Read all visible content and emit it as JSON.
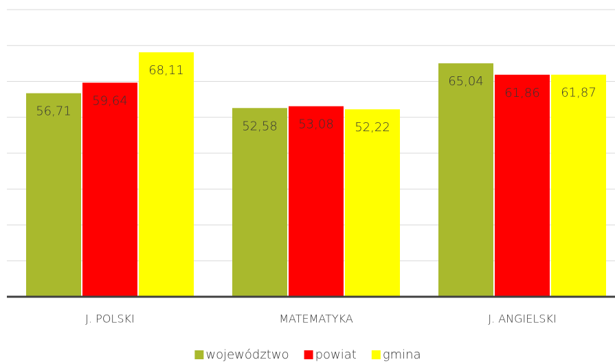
{
  "chart_data": {
    "type": "bar",
    "categories": [
      "J. POLSKI",
      "MATEMATYKA",
      "J. ANGIELSKI"
    ],
    "series": [
      {
        "name": "województwo",
        "color": "#a9b92d",
        "values": [
          56.71,
          52.58,
          65.04
        ],
        "value_labels": [
          "56,71",
          "52,58",
          "65,04"
        ]
      },
      {
        "name": "powiat",
        "color": "#ff0000",
        "values": [
          59.64,
          53.08,
          61.86
        ],
        "value_labels": [
          "59,64",
          "53,08",
          "61,86"
        ]
      },
      {
        "name": "gmina",
        "color": "#ffff00",
        "values": [
          68.11,
          52.22,
          61.87
        ],
        "value_labels": [
          "68,11",
          "52,22",
          "61,87"
        ]
      }
    ],
    "ylim": [
      0,
      80
    ],
    "yticks": [
      0,
      10,
      20,
      30,
      40,
      50,
      60,
      70,
      80
    ],
    "grid": true
  }
}
